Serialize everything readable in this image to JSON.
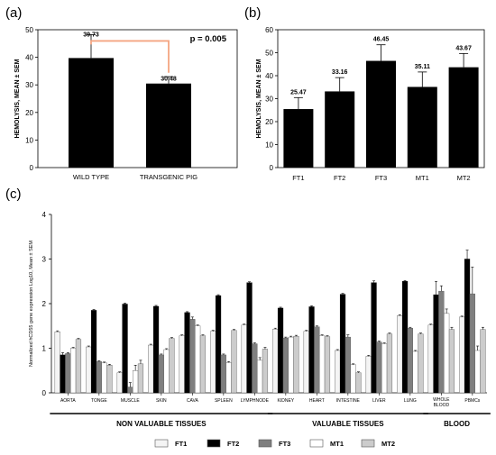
{
  "colors": {
    "FT1": "#f4f4f4",
    "FT2": "#000000",
    "FT3": "#7f7f7f",
    "MT1": "#ffffff",
    "MT2": "#cccccc",
    "bracket": "#f4a582"
  },
  "chart_data": [
    {
      "panel": "(a)",
      "type": "bar",
      "categories": [
        "WILD TYPE",
        "TRANSGENIC PIG"
      ],
      "values": [
        39.73,
        30.48
      ],
      "errors": [
        8.5,
        2.5
      ],
      "value_labels": [
        "39.73",
        "30.48"
      ],
      "ylabel": "HEMOLYSIS, MEAN ± SEM",
      "ylim": [
        0,
        50
      ],
      "yticks": [
        "0",
        "10",
        "20",
        "30",
        "40",
        "50"
      ],
      "annotation": "p = 0.005"
    },
    {
      "panel": "(b)",
      "type": "bar",
      "categories": [
        "FT1",
        "FT2",
        "FT3",
        "MT1",
        "MT2"
      ],
      "values": [
        25.47,
        33.16,
        46.45,
        35.11,
        43.67
      ],
      "errors": [
        5,
        6,
        7,
        6.5,
        6
      ],
      "value_labels": [
        "25.47",
        "33.16",
        "46.45",
        "35.11",
        "43.67"
      ],
      "ylabel": "HEMOLYSIS, MEAN ± SEM",
      "ylim": [
        0,
        60
      ],
      "yticks": [
        "0",
        "10",
        "20",
        "30",
        "40",
        "50",
        "60"
      ]
    },
    {
      "panel": "(c)",
      "type": "bar",
      "ylabel": "Normalized hCD55 gene expression Log10, Mean ± SEM",
      "ylim": [
        0,
        4
      ],
      "yticks": [
        "0",
        "1",
        "2",
        "3",
        "4"
      ],
      "categories": [
        "AORTA",
        "TONGE",
        "MUSCLE",
        "SKIN",
        "CAVA",
        "SPLEEN",
        "LYMPHNODE",
        "KIDNEY",
        "HEART",
        "INTESTINE",
        "LIVER",
        "LUNG",
        "WHOLE BLOOD",
        "PBMCs"
      ],
      "series": [
        {
          "name": "FT1",
          "values": [
            1.37,
            1.03,
            0.45,
            1.07,
            1.28,
            1.38,
            1.52,
            1.43,
            1.38,
            0.95,
            0.82,
            1.73,
            1.52,
            1.7
          ]
        },
        {
          "name": "FT2",
          "values": [
            0.85,
            1.85,
            1.99,
            1.94,
            1.8,
            2.18,
            2.47,
            1.9,
            1.93,
            2.21,
            2.47,
            2.5,
            2.2,
            3.0
          ]
        },
        {
          "name": "FT3",
          "values": [
            0.88,
            0.7,
            0.13,
            0.85,
            1.65,
            0.85,
            1.1,
            1.23,
            1.48,
            1.25,
            1.14,
            1.45,
            2.28,
            2.22
          ]
        },
        {
          "name": "MT1",
          "values": [
            1.0,
            0.67,
            0.5,
            0.97,
            1.5,
            0.68,
            0.73,
            1.25,
            1.28,
            0.63,
            1.1,
            0.93,
            1.78,
            0.95
          ]
        },
        {
          "name": "MT2",
          "values": [
            1.2,
            0.62,
            0.65,
            1.22,
            1.28,
            1.4,
            0.98,
            1.27,
            1.26,
            0.45,
            1.32,
            1.32,
            1.42,
            1.42
          ]
        }
      ],
      "errors": [
        [
          0.02,
          0.02,
          0.02,
          0.02,
          0.02,
          0.02,
          0.02,
          0.02,
          0.02,
          0.02,
          0.02,
          0.02,
          0.02,
          0.02
        ],
        [
          0.05,
          0.02,
          0.02,
          0.02,
          0.02,
          0.02,
          0.02,
          0.02,
          0.02,
          0.02,
          0.04,
          0.02,
          0.3,
          0.2
        ],
        [
          0.02,
          0.02,
          0.1,
          0.02,
          0.05,
          0.02,
          0.02,
          0.02,
          0.02,
          0.05,
          0.02,
          0.02,
          0.12,
          0.6
        ],
        [
          0.02,
          0.02,
          0.12,
          0.02,
          0.02,
          0.02,
          0.06,
          0.02,
          0.02,
          0.02,
          0.02,
          0.02,
          0.1,
          0.1
        ],
        [
          0.02,
          0.02,
          0.08,
          0.02,
          0.02,
          0.02,
          0.04,
          0.02,
          0.02,
          0.02,
          0.02,
          0.02,
          0.05,
          0.05
        ]
      ],
      "category_labels": [
        "AORTA",
        "TONGE",
        "MUSCLE",
        "SKIN",
        "CAVA",
        "SPLEEN",
        "LYMPHNODE",
        "KIDNEY",
        "HEART",
        "INTESTINE",
        "LIVER",
        "LUNG",
        "WHOLE BLOOD",
        "PBMCs"
      ],
      "groups": [
        {
          "label": "NON VALUABLE TISSUES",
          "from": 0,
          "to": 6
        },
        {
          "label": "VALUABLE TISSUES",
          "from": 7,
          "to": 11
        },
        {
          "label": "BLOOD",
          "from": 12,
          "to": 13
        }
      ],
      "legend": [
        "FT1",
        "FT2",
        "FT3",
        "MT1",
        "MT2"
      ]
    }
  ]
}
